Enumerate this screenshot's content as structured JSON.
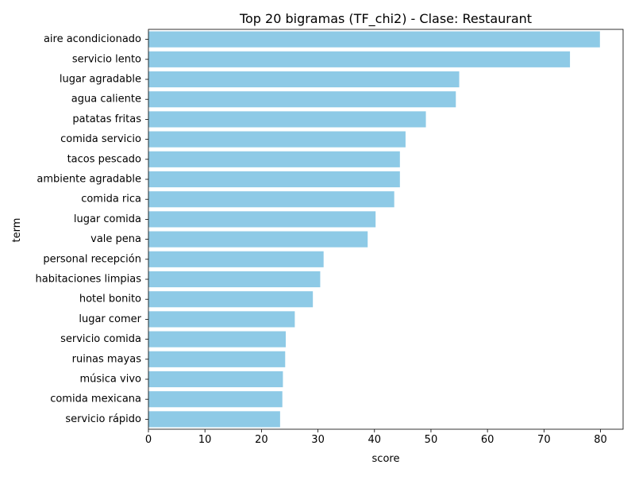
{
  "chart_data": {
    "type": "bar",
    "orientation": "horizontal",
    "title": "Top 20 bigramas (TF_chi2) - Clase: Restaurant",
    "xlabel": "score",
    "ylabel": "term",
    "xlim": [
      0,
      84
    ],
    "xticks": [
      0,
      10,
      20,
      30,
      40,
      50,
      60,
      70,
      80
    ],
    "grid": false,
    "bar_color": "#8ecae6",
    "categories": [
      "aire acondicionado",
      "servicio lento",
      "lugar agradable",
      "agua caliente",
      "patatas fritas",
      "comida servicio",
      "tacos pescado",
      "ambiente agradable",
      "comida rica",
      "lugar comida",
      "vale pena",
      "personal recepción",
      "habitaciones limpias",
      "hotel bonito",
      "lugar comer",
      "servicio comida",
      "ruinas mayas",
      "música vivo",
      "comida mexicana",
      "servicio rápido"
    ],
    "values": [
      79.9,
      74.6,
      55.0,
      54.4,
      49.1,
      45.5,
      44.5,
      44.5,
      43.5,
      40.2,
      38.8,
      31.0,
      30.4,
      29.1,
      25.9,
      24.3,
      24.2,
      23.8,
      23.7,
      23.3
    ]
  }
}
